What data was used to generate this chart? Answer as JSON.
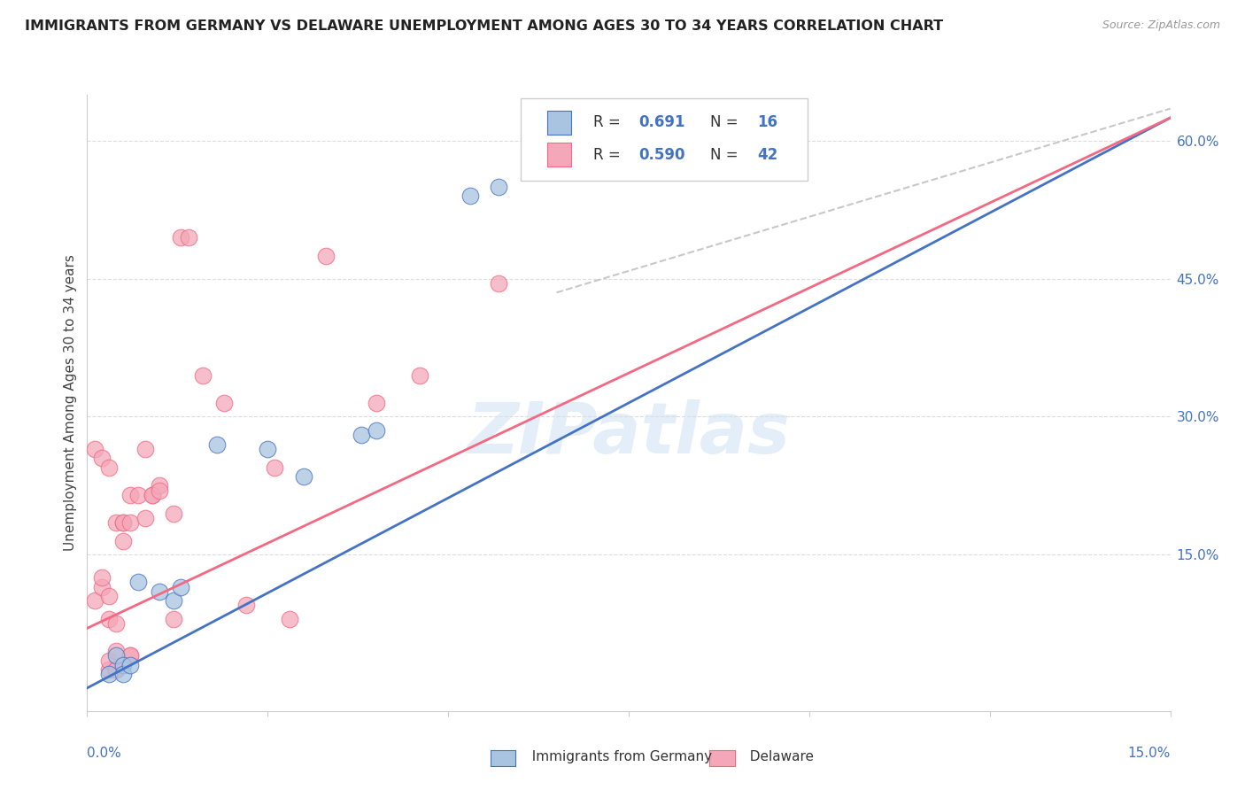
{
  "title": "IMMIGRANTS FROM GERMANY VS DELAWARE UNEMPLOYMENT AMONG AGES 30 TO 34 YEARS CORRELATION CHART",
  "source": "Source: ZipAtlas.com",
  "ylabel_label": "Unemployment Among Ages 30 to 34 years",
  "yaxis_ticks": [
    "15.0%",
    "30.0%",
    "45.0%",
    "60.0%"
  ],
  "yaxis_tick_vals": [
    0.15,
    0.3,
    0.45,
    0.6
  ],
  "xlim": [
    0.0,
    0.15
  ],
  "ylim": [
    -0.02,
    0.65
  ],
  "color_blue": "#a8c4e0",
  "color_pink": "#f4a7b9",
  "line_blue": "#4472C4",
  "line_pink": "#F46882",
  "line_dashed_color": "#c8c8c8",
  "watermark": "ZIPatlas",
  "blue_points": [
    [
      0.003,
      0.02
    ],
    [
      0.004,
      0.04
    ],
    [
      0.005,
      0.03
    ],
    [
      0.005,
      0.02
    ],
    [
      0.006,
      0.03
    ],
    [
      0.007,
      0.12
    ],
    [
      0.01,
      0.11
    ],
    [
      0.012,
      0.1
    ],
    [
      0.013,
      0.115
    ],
    [
      0.018,
      0.27
    ],
    [
      0.025,
      0.265
    ],
    [
      0.03,
      0.235
    ],
    [
      0.038,
      0.28
    ],
    [
      0.04,
      0.285
    ],
    [
      0.053,
      0.54
    ],
    [
      0.057,
      0.55
    ]
  ],
  "pink_points": [
    [
      0.001,
      0.1
    ],
    [
      0.002,
      0.115
    ],
    [
      0.002,
      0.125
    ],
    [
      0.003,
      0.025
    ],
    [
      0.003,
      0.035
    ],
    [
      0.003,
      0.08
    ],
    [
      0.003,
      0.105
    ],
    [
      0.004,
      0.025
    ],
    [
      0.004,
      0.045
    ],
    [
      0.004,
      0.075
    ],
    [
      0.004,
      0.185
    ],
    [
      0.004,
      0.025
    ],
    [
      0.005,
      0.185
    ],
    [
      0.005,
      0.165
    ],
    [
      0.005,
      0.185
    ],
    [
      0.006,
      0.215
    ],
    [
      0.006,
      0.04
    ],
    [
      0.006,
      0.04
    ],
    [
      0.006,
      0.185
    ],
    [
      0.007,
      0.215
    ],
    [
      0.008,
      0.265
    ],
    [
      0.009,
      0.215
    ],
    [
      0.009,
      0.215
    ],
    [
      0.01,
      0.225
    ],
    [
      0.012,
      0.08
    ],
    [
      0.013,
      0.495
    ],
    [
      0.014,
      0.495
    ],
    [
      0.016,
      0.345
    ],
    [
      0.019,
      0.315
    ],
    [
      0.022,
      0.095
    ],
    [
      0.026,
      0.245
    ],
    [
      0.028,
      0.08
    ],
    [
      0.033,
      0.475
    ],
    [
      0.04,
      0.315
    ],
    [
      0.046,
      0.345
    ],
    [
      0.057,
      0.445
    ],
    [
      0.001,
      0.265
    ],
    [
      0.002,
      0.255
    ],
    [
      0.003,
      0.245
    ],
    [
      0.008,
      0.19
    ],
    [
      0.01,
      0.22
    ],
    [
      0.012,
      0.195
    ]
  ],
  "blue_line_x": [
    0.0,
    0.15
  ],
  "blue_line_y": [
    0.005,
    0.625
  ],
  "pink_line_x": [
    0.0,
    0.15
  ],
  "pink_line_y": [
    0.07,
    0.625
  ],
  "dashed_line_x": [
    0.065,
    0.15
  ],
  "dashed_line_y": [
    0.435,
    0.635
  ]
}
